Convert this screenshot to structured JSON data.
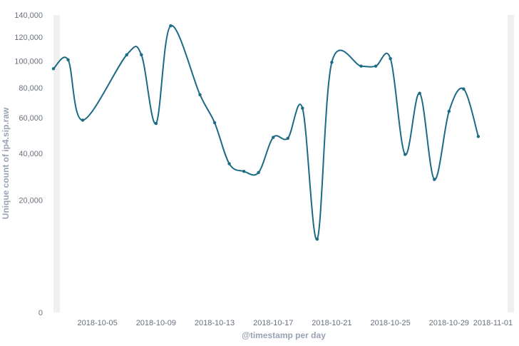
{
  "chart_data": {
    "type": "line",
    "title": "",
    "xlabel": "@timestamp per day",
    "ylabel": "Unique count of ip4.sip.raw",
    "y_scale": "sqrt",
    "ylim": [
      0,
      140000
    ],
    "y_ticks": [
      {
        "value": 0,
        "label": "0"
      },
      {
        "value": 20000,
        "label": "20,000"
      },
      {
        "value": 40000,
        "label": "40,000"
      },
      {
        "value": 60000,
        "label": "60,000"
      },
      {
        "value": 80000,
        "label": "80,000"
      },
      {
        "value": 100000,
        "label": "100,000"
      },
      {
        "value": 120000,
        "label": "120,000"
      },
      {
        "value": 140000,
        "label": "140,000"
      }
    ],
    "xlim": [
      "2018-10-02",
      "2018-11-02"
    ],
    "x_ticks": [
      "2018-10-05",
      "2018-10-09",
      "2018-10-13",
      "2018-10-17",
      "2018-10-21",
      "2018-10-25",
      "2018-10-29",
      "2018-11-01"
    ],
    "grid": false,
    "line_color": "#1c6b85",
    "series": [
      {
        "x": [
          "2018-10-02",
          "2018-10-03",
          "2018-10-04",
          "2018-10-07",
          "2018-10-08",
          "2018-10-09",
          "2018-10-10",
          "2018-10-12",
          "2018-10-13",
          "2018-10-14",
          "2018-10-15",
          "2018-10-16",
          "2018-10-17",
          "2018-10-18",
          "2018-10-19",
          "2018-10-20",
          "2018-10-21",
          "2018-10-23",
          "2018-10-24",
          "2018-10-25",
          "2018-10-26",
          "2018-10-27",
          "2018-10-28",
          "2018-10-29",
          "2018-10-30",
          "2018-10-31",
          "2018-11-01"
        ],
        "values": [
          94000,
          101000,
          58500,
          105000,
          105000,
          56500,
          130000,
          75000,
          57000,
          35000,
          31500,
          31000,
          48500,
          48000,
          66000,
          8500,
          99000,
          96000,
          96000,
          102000,
          39500,
          76000,
          28000,
          64000,
          79000,
          49000,
          null
        ]
      }
    ]
  }
}
